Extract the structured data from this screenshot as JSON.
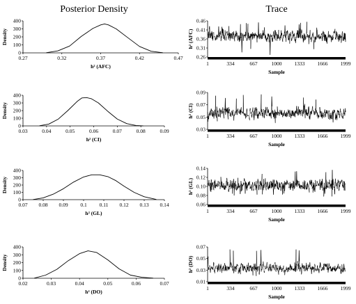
{
  "column_titles": {
    "left": "Posterior Density",
    "right": "Trace"
  },
  "colors": {
    "ink": "#000000",
    "trace_light": "#8a8a8a",
    "background": "#ffffff"
  },
  "chart_data": [
    {
      "type": "line",
      "panel": "density",
      "row": 0,
      "xlabel": "h² (AFC)",
      "ylabel": "Density",
      "xlim": [
        0.27,
        0.47
      ],
      "ylim": [
        0,
        400
      ],
      "xticks": [
        "0.27",
        "0.32",
        "0.37",
        "0.42",
        "0.47"
      ],
      "yticks": [
        "0",
        "100",
        "200",
        "300",
        "400"
      ],
      "x": [
        0.3,
        0.315,
        0.33,
        0.345,
        0.36,
        0.37,
        0.375,
        0.38,
        0.39,
        0.405,
        0.42,
        0.435,
        0.45
      ],
      "y": [
        2,
        25,
        85,
        205,
        305,
        350,
        362,
        350,
        300,
        190,
        80,
        20,
        2
      ]
    },
    {
      "type": "line",
      "panel": "trace",
      "row": 0,
      "xlabel": "Sample",
      "ylabel": "h² (AFC)",
      "xlim": [
        1,
        1999
      ],
      "ylim": [
        0.26,
        0.46
      ],
      "xticks": [
        "1",
        "334",
        "667",
        "1000",
        "1333",
        "1666",
        "1999"
      ],
      "yticks": [
        "0.26",
        "0.31",
        "0.36",
        "0.41",
        "0.46"
      ],
      "mean": 0.375,
      "spread": 0.025,
      "min": 0.27,
      "max": 0.455
    },
    {
      "type": "line",
      "panel": "density",
      "row": 1,
      "xlabel": "h² (CI)",
      "ylabel": "Density",
      "xlim": [
        0.03,
        0.09
      ],
      "ylim": [
        0,
        400
      ],
      "xticks": [
        "0.03",
        "0.04",
        "0.05",
        "0.06",
        "0.07",
        "0.08",
        "0.09"
      ],
      "yticks": [
        "0",
        "100",
        "200",
        "300",
        "400"
      ],
      "x": [
        0.037,
        0.041,
        0.045,
        0.049,
        0.053,
        0.055,
        0.057,
        0.059,
        0.062,
        0.066,
        0.07,
        0.074,
        0.078,
        0.081
      ],
      "y": [
        2,
        25,
        90,
        200,
        320,
        365,
        370,
        355,
        300,
        190,
        90,
        30,
        5,
        1
      ]
    },
    {
      "type": "line",
      "panel": "trace",
      "row": 1,
      "xlabel": "Sample",
      "ylabel": "h² (CI)",
      "xlim": [
        1,
        1999
      ],
      "ylim": [
        0.03,
        0.09
      ],
      "xticks": [
        "1",
        "334",
        "667",
        "1000",
        "1333",
        "1666",
        "1999"
      ],
      "yticks": [
        "0.03",
        "0.05",
        "0.07",
        "0.09"
      ],
      "mean": 0.056,
      "spread": 0.007,
      "min": 0.038,
      "max": 0.088
    },
    {
      "type": "line",
      "panel": "density",
      "row": 2,
      "xlabel": "h² (GL)",
      "ylabel": "Density",
      "xlim": [
        0.07,
        0.14
      ],
      "ylim": [
        0,
        400
      ],
      "xticks": [
        "0.07",
        "0.08",
        "0.09",
        "0.1",
        "0.11",
        "0.12",
        "0.13",
        "0.14"
      ],
      "yticks": [
        "0",
        "100",
        "200",
        "300",
        "400"
      ],
      "x": [
        0.075,
        0.08,
        0.085,
        0.09,
        0.095,
        0.1,
        0.104,
        0.108,
        0.112,
        0.116,
        0.12,
        0.125,
        0.13,
        0.136
      ],
      "y": [
        2,
        25,
        75,
        150,
        240,
        310,
        340,
        340,
        315,
        260,
        185,
        100,
        40,
        3
      ]
    },
    {
      "type": "line",
      "panel": "trace",
      "row": 2,
      "xlabel": "Sample",
      "ylabel": "h² (GL)",
      "xlim": [
        1,
        1999
      ],
      "ylim": [
        0.06,
        0.14
      ],
      "xticks": [
        "1",
        "334",
        "667",
        "1000",
        "1333",
        "1666",
        "1999"
      ],
      "yticks": [
        "0.06",
        "0.08",
        "0.10",
        "0.12",
        "0.14"
      ],
      "mean": 0.103,
      "spread": 0.01,
      "min": 0.075,
      "max": 0.138
    },
    {
      "type": "line",
      "panel": "density",
      "row": 3,
      "xlabel": "h² (DO)",
      "ylabel": "Density",
      "xlim": [
        0.02,
        0.07
      ],
      "ylim": [
        0,
        400
      ],
      "xticks": [
        "0.02",
        "0.03",
        "0.04",
        "0.05",
        "0.06",
        "0.07"
      ],
      "yticks": [
        "0",
        "100",
        "200",
        "300",
        "400"
      ],
      "x": [
        0.024,
        0.028,
        0.032,
        0.036,
        0.04,
        0.043,
        0.046,
        0.05,
        0.054,
        0.058,
        0.062,
        0.066
      ],
      "y": [
        2,
        40,
        115,
        225,
        315,
        350,
        330,
        235,
        120,
        40,
        12,
        2
      ]
    },
    {
      "type": "line",
      "panel": "trace",
      "row": 3,
      "xlabel": "Sample",
      "ylabel": "h² (DO)",
      "xlim": [
        1,
        1999
      ],
      "ylim": [
        0.01,
        0.07
      ],
      "xticks": [
        "1",
        "334",
        "667",
        "1000",
        "1333",
        "1666",
        "1999"
      ],
      "yticks": [
        "0.01",
        "0.03",
        "0.05",
        "0.07"
      ],
      "mean": 0.034,
      "spread": 0.006,
      "min": 0.018,
      "max": 0.066
    }
  ]
}
